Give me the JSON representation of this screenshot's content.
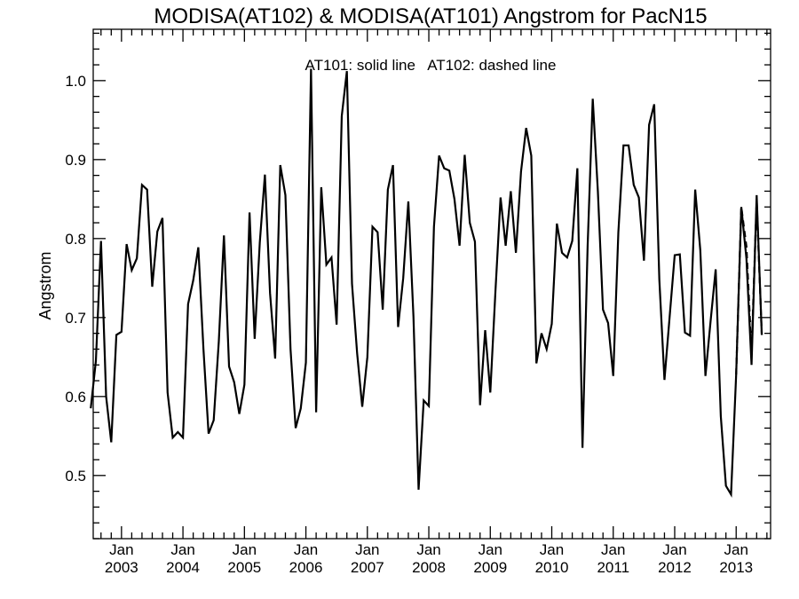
{
  "chart_data": {
    "type": "line",
    "title": "MODISA(AT102) & MODISA(AT101)  Angstrom for PacN15",
    "annotation": "AT101: solid line   AT102: dashed line",
    "xlabel": "",
    "ylabel": "Angstrom",
    "x_start": "2002-07",
    "x_step": "1 month",
    "xlim": [
      2002.54,
      2013.56
    ],
    "ylim": [
      0.42,
      1.065
    ],
    "y_ticks": [
      0.5,
      0.6,
      0.7,
      0.8,
      0.9,
      1.0
    ],
    "y_tick_labels": [
      "0.5",
      "0.6",
      "0.7",
      "0.8",
      "0.9",
      "1.0"
    ],
    "x_tick_month": "Jan",
    "x_tick_years": [
      "2003",
      "2004",
      "2005",
      "2006",
      "2007",
      "2008",
      "2009",
      "2010",
      "2011",
      "2012",
      "2013"
    ],
    "series": [
      {
        "name": "AT101",
        "style": "solid",
        "values": [
          0.585,
          0.645,
          0.797,
          0.6,
          0.542,
          0.678,
          0.682,
          0.793,
          0.76,
          0.775,
          0.868,
          0.862,
          0.739,
          0.809,
          0.826,
          0.605,
          0.548,
          0.555,
          0.548,
          0.717,
          0.747,
          0.789,
          0.66,
          0.553,
          0.57,
          0.67,
          0.804,
          0.638,
          0.618,
          0.578,
          0.615,
          0.833,
          0.673,
          0.795,
          0.881,
          0.731,
          0.648,
          0.893,
          0.855,
          0.66,
          0.56,
          0.585,
          0.643,
          1.015,
          0.58,
          0.865,
          0.767,
          0.776,
          0.691,
          0.955,
          1.012,
          0.743,
          0.655,
          0.587,
          0.65,
          0.815,
          0.808,
          0.71,
          0.862,
          0.893,
          0.688,
          0.75,
          0.847,
          0.701,
          0.482,
          0.595,
          0.588,
          0.815,
          0.905,
          0.889,
          0.886,
          0.85,
          0.791,
          0.906,
          0.82,
          0.796,
          0.589,
          0.684,
          0.605,
          0.733,
          0.852,
          0.791,
          0.86,
          0.782,
          0.885,
          0.94,
          0.905,
          0.642,
          0.68,
          0.66,
          0.692,
          0.819,
          0.782,
          0.776,
          0.797,
          0.889,
          0.535,
          0.79,
          0.977,
          0.86,
          0.71,
          0.693,
          0.626,
          0.808,
          0.918,
          0.918,
          0.868,
          0.852,
          0.772,
          0.944,
          0.97,
          0.748,
          0.621,
          0.7,
          0.779,
          0.78,
          0.681,
          0.677,
          0.862,
          0.785,
          0.626,
          0.695,
          0.761,
          0.575,
          0.487,
          0.476,
          0.628,
          0.84,
          0.775,
          0.64,
          0.855,
          0.678
        ]
      },
      {
        "name": "AT102",
        "style": "dashed",
        "values": [
          null,
          null,
          null,
          null,
          null,
          null,
          null,
          null,
          null,
          null,
          null,
          null,
          null,
          null,
          null,
          null,
          null,
          null,
          null,
          null,
          null,
          null,
          null,
          null,
          null,
          null,
          null,
          null,
          null,
          null,
          null,
          null,
          null,
          null,
          null,
          null,
          null,
          null,
          null,
          null,
          null,
          null,
          null,
          null,
          null,
          null,
          null,
          null,
          null,
          null,
          null,
          null,
          null,
          null,
          null,
          null,
          null,
          null,
          null,
          null,
          null,
          null,
          null,
          null,
          null,
          null,
          null,
          null,
          null,
          null,
          null,
          null,
          null,
          null,
          null,
          null,
          null,
          null,
          null,
          null,
          null,
          null,
          null,
          null,
          null,
          null,
          null,
          null,
          null,
          null,
          null,
          null,
          null,
          null,
          null,
          null,
          null,
          null,
          null,
          null,
          null,
          null,
          null,
          null,
          null,
          null,
          null,
          null,
          null,
          null,
          null,
          null,
          null,
          null,
          null,
          null,
          null,
          null,
          null,
          null,
          null,
          null,
          null,
          null,
          null,
          null,
          0.628,
          0.84,
          0.79,
          0.655,
          0.848,
          0.678
        ]
      }
    ],
    "grid": false,
    "legend": "none"
  }
}
